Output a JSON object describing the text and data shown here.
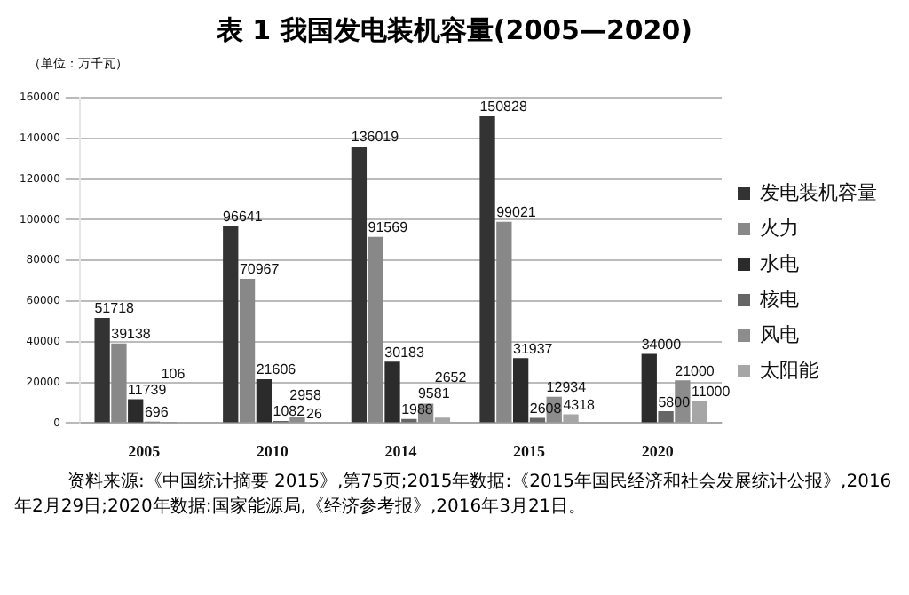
{
  "chart_data": {
    "type": "bar",
    "title": "表 1 我国发电装机容量(2005—2020)",
    "ylabel": "（单位：万千瓦）",
    "categories": [
      "2005",
      "2010",
      "2014",
      "2015",
      "2020"
    ],
    "series": [
      {
        "name": "发电装机容量",
        "color": "#333333",
        "values": [
          51718,
          96641,
          136019,
          150828,
          null
        ]
      },
      {
        "name": "火力",
        "color": "#888888",
        "values": [
          39138,
          70967,
          91569,
          99021,
          null
        ]
      },
      {
        "name": "水电",
        "color": "#2b2b2b",
        "values": [
          11739,
          21606,
          30183,
          31937,
          34000
        ]
      },
      {
        "name": "核电",
        "color": "#666666",
        "values": [
          696,
          1082,
          1988,
          2608,
          5800
        ]
      },
      {
        "name": "风电",
        "color": "#8c8c8c",
        "values": [
          106,
          2958,
          9581,
          12934,
          21000
        ]
      },
      {
        "name": "太阳能",
        "color": "#a6a6a6",
        "values": [
          null,
          26,
          2652,
          4318,
          11000
        ]
      }
    ],
    "ylim": [
      0,
      160000
    ],
    "yticks": [
      0,
      20000,
      40000,
      60000,
      80000,
      100000,
      120000,
      140000,
      160000
    ],
    "grid": "y",
    "legend": "right",
    "data_labels": true,
    "annotations": [
      "资料来源:《中国统计摘要 2015》,第75页;2015年数据:《2015年国民经济和社会发展统计公报》,2016年2月29日;2020年数据:国家能源局,《经济参考报》,2016年3月21日。"
    ]
  }
}
